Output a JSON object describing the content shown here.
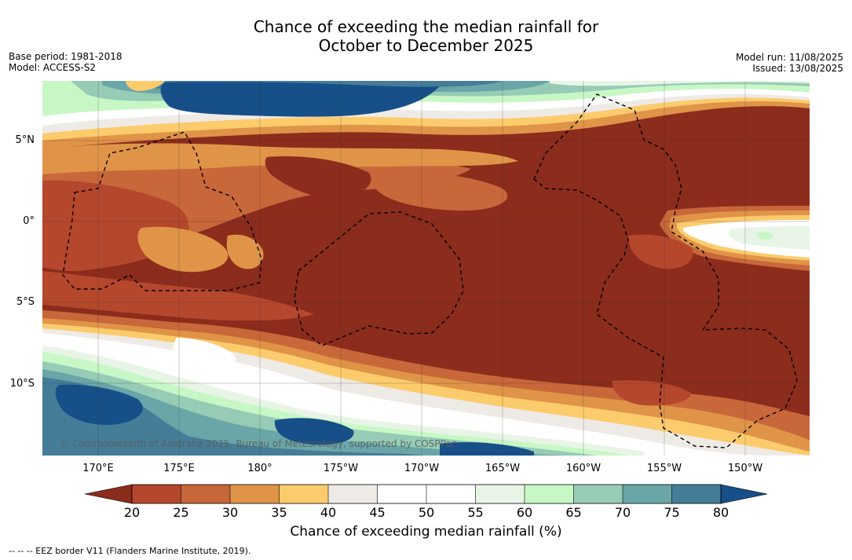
{
  "title": {
    "line1": "Chance of exceeding the median rainfall for",
    "line2": "October to December 2025"
  },
  "meta": {
    "base_period": "Base period: 1981-2018",
    "model": "Model: ACCESS-S2",
    "model_run": "Model run: 11/08/2025",
    "issued": "Issued: 13/08/2025"
  },
  "map": {
    "lat_labels": [
      "5°N",
      "0°",
      "5°S",
      "10°S"
    ],
    "lon_labels": [
      "170°E",
      "175°E",
      "180°",
      "175°W",
      "170°W",
      "165°W",
      "160°W",
      "155°W",
      "150°W"
    ],
    "copyright": "© Commonwealth of Australia 2025, Bureau of Meteorology, supported by COSPPac"
  },
  "colorbar": {
    "title": "Chance of exceeding median rainfall (%)",
    "ticks": [
      "20",
      "25",
      "30",
      "35",
      "40",
      "45",
      "50",
      "55",
      "60",
      "65",
      "70",
      "75",
      "80"
    ],
    "colors": {
      "below_20": "#8b2c1c",
      "c20_25": "#b5472c",
      "c25_30": "#c8673a",
      "c30_35": "#e09448",
      "c35_40": "#fccb6c",
      "c40_45": "#eeeae6",
      "c45_50": "#ffffff",
      "c50_55": "#ffffff",
      "c55_60": "#e8f5e6",
      "c60_65": "#c8f7c6",
      "c65_70": "#96ccb5",
      "c70_75": "#6aa6a8",
      "c75_80": "#457d99",
      "above_80": "#174f88"
    }
  },
  "footer": {
    "eez_note": "-- -- -- EEZ border V11 (Flanders Marine Institute, 2019)."
  }
}
